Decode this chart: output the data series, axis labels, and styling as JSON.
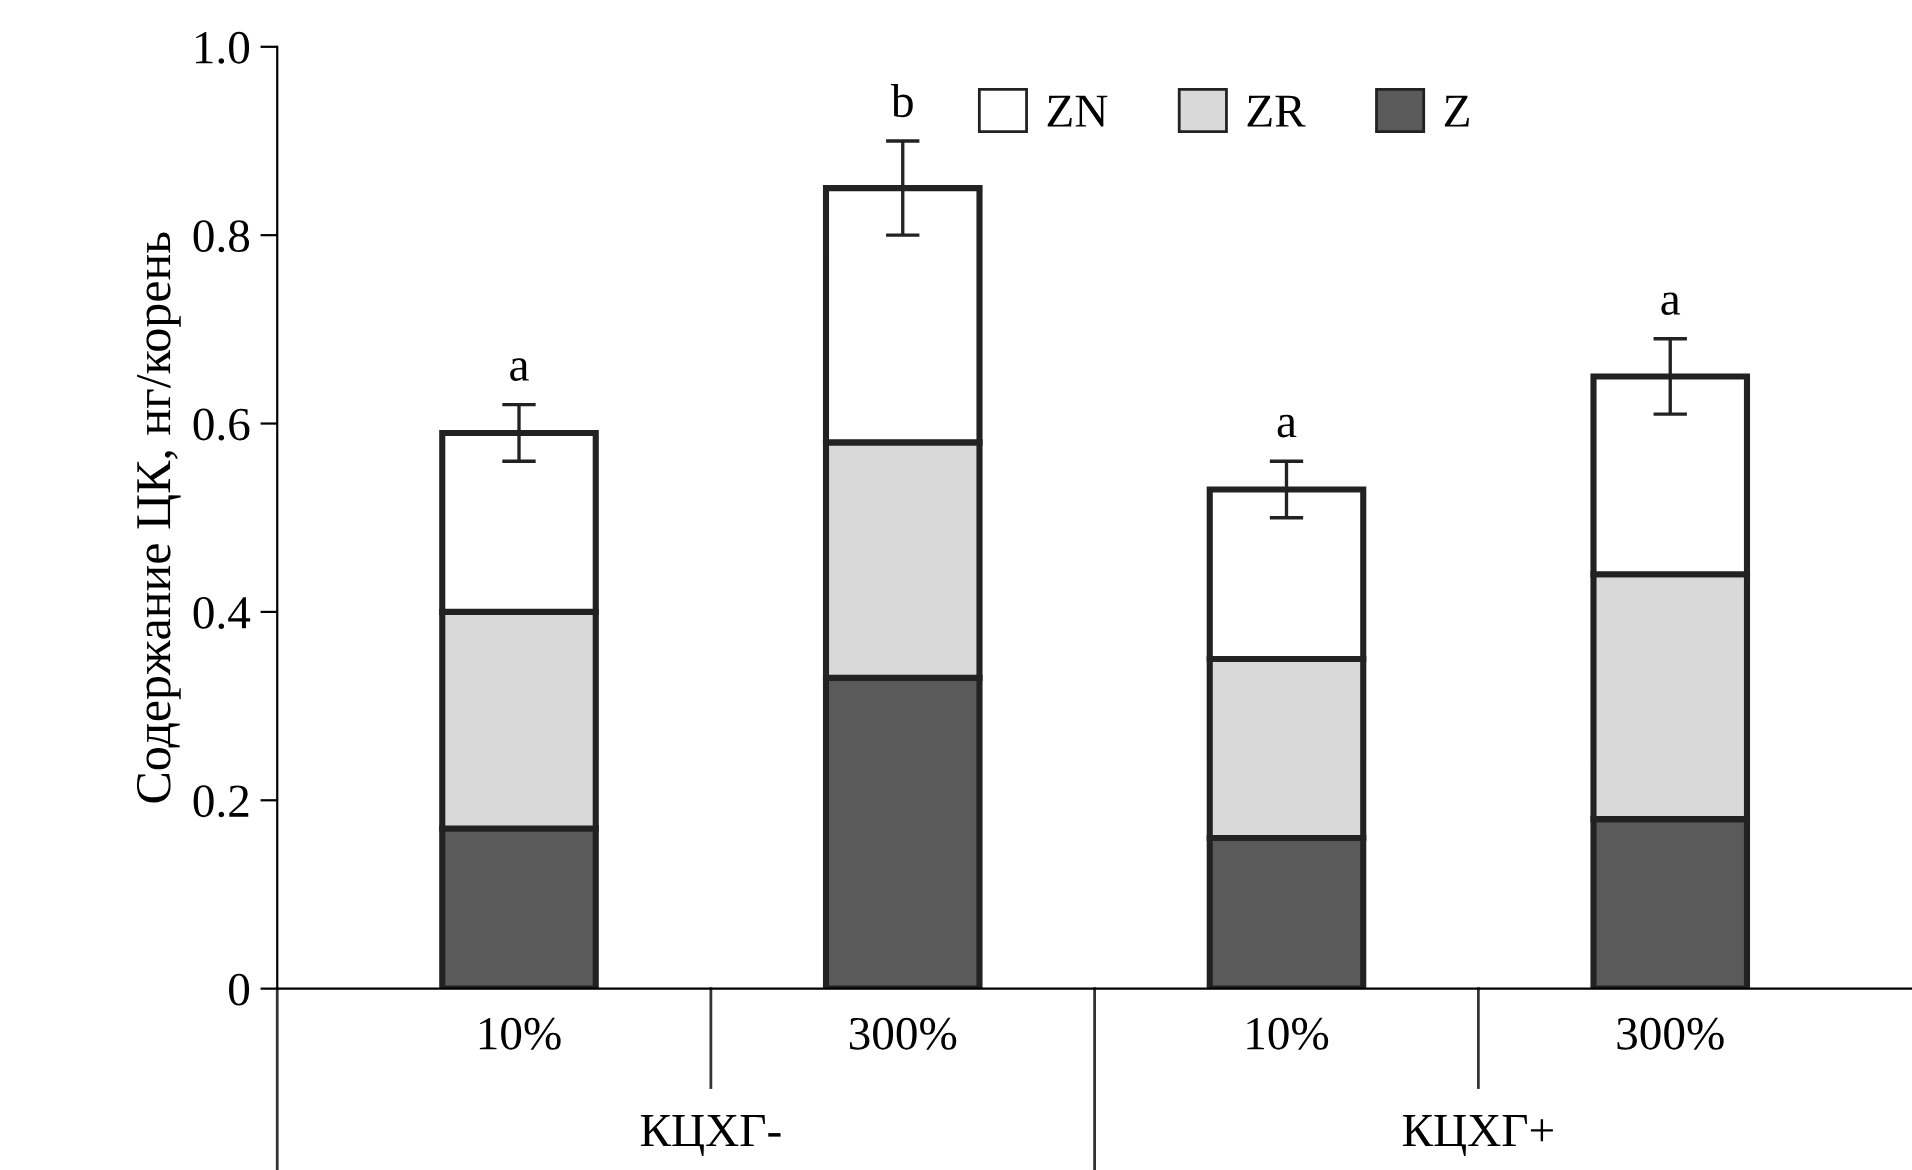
{
  "chart_data": {
    "type": "bar",
    "stacked": true,
    "ylabel": "Содержание ЦК, нг/корень",
    "categories": [
      "10%",
      "300%",
      "10%",
      "300%"
    ],
    "series": [
      {
        "name": "Z",
        "color": "#5a5a5a",
        "values": [
          0.17,
          0.33,
          0.16,
          0.18
        ]
      },
      {
        "name": "ZR",
        "color": "#d9d9d9",
        "values": [
          0.23,
          0.25,
          0.19,
          0.26
        ]
      },
      {
        "name": "ZN",
        "color": "#ffffff",
        "values": [
          0.19,
          0.27,
          0.18,
          0.21
        ],
        "errors": [
          0.03,
          0.05,
          0.03,
          0.04
        ]
      }
    ],
    "annotations": [
      "a",
      "b",
      "a",
      "a",
      "КЦХГ-",
      "КЦХГ+"
    ],
    "ylim": [
      0,
      1.0
    ],
    "yticks": [
      0,
      {
        "value": 0.2,
        "label": "0.2"
      },
      {
        "value": 0.4,
        "label": "0.4"
      },
      {
        "value": 0.6,
        "label": "0.6"
      },
      {
        "value": 0.8,
        "label": "0.8"
      },
      {
        "value": 1.0,
        "label": "1.0"
      }
    ],
    "grid": false,
    "legend": "top"
  }
}
